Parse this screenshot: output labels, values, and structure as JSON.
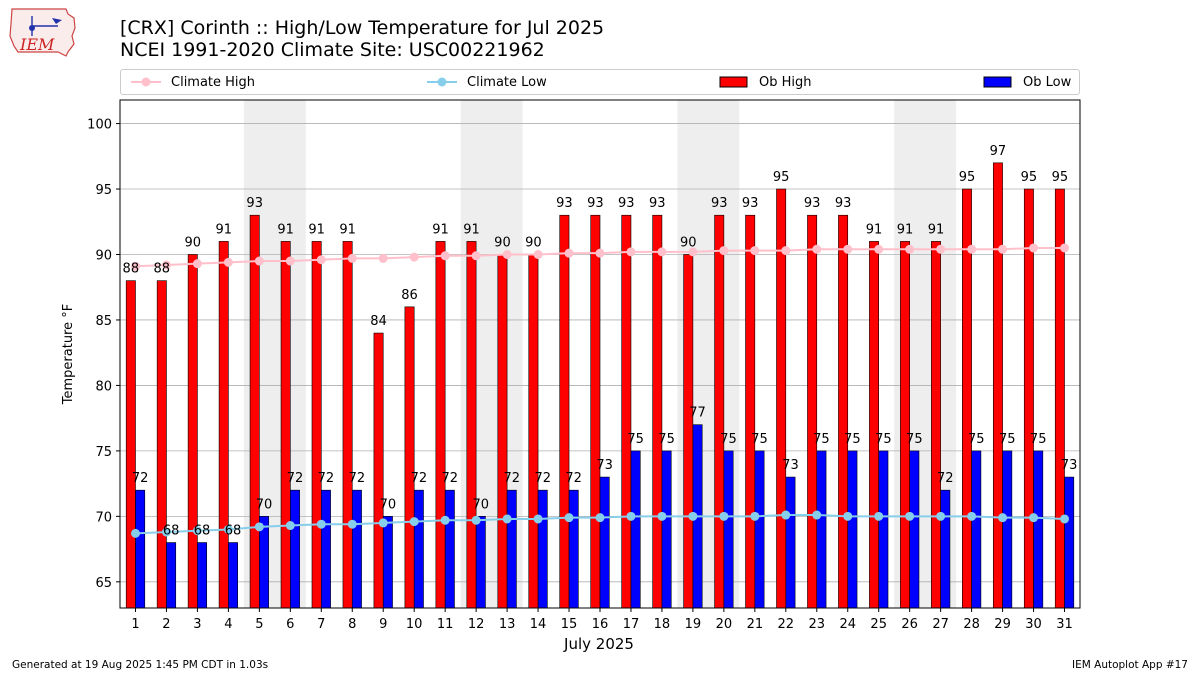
{
  "header": {
    "logo_text": "IEM",
    "title_line1": "[CRX] Corinth :: High/Low Temperature for Jul 2025",
    "title_line2": "NCEI 1991-2020 Climate Site: USC00221962"
  },
  "footer": {
    "generated": "Generated at 19 Aug 2025 1:45 PM CDT in 1.03s",
    "app": "IEM Autoplot App #17"
  },
  "colors": {
    "climate_high": "#ffc0cb",
    "climate_low": "#87ceeb",
    "ob_high": "#ff0000",
    "ob_low": "#0000ff",
    "weekend_shade": "#eeeeee",
    "grid": "#b0b0b0"
  },
  "chart_data": {
    "type": "bar",
    "xlabel": "July 2025",
    "ylabel": "Temperature °F",
    "ylim": [
      63,
      101.8
    ],
    "yticks": [
      65,
      70,
      75,
      80,
      85,
      90,
      95,
      100
    ],
    "grid": "horizontal",
    "legend_position": "top",
    "categories": [
      "1",
      "2",
      "3",
      "4",
      "5",
      "6",
      "7",
      "8",
      "9",
      "10",
      "11",
      "12",
      "13",
      "14",
      "15",
      "16",
      "17",
      "18",
      "19",
      "20",
      "21",
      "22",
      "23",
      "24",
      "25",
      "26",
      "27",
      "28",
      "29",
      "30",
      "31"
    ],
    "shaded_weekends": [
      [
        5,
        6
      ],
      [
        12,
        13
      ],
      [
        19,
        20
      ],
      [
        26,
        27
      ]
    ],
    "series": [
      {
        "name": "Climate High",
        "kind": "line",
        "values": [
          89.1,
          89.2,
          89.3,
          89.4,
          89.5,
          89.5,
          89.6,
          89.7,
          89.7,
          89.8,
          89.9,
          89.9,
          90.0,
          90.0,
          90.1,
          90.1,
          90.2,
          90.2,
          90.2,
          90.3,
          90.3,
          90.3,
          90.4,
          90.4,
          90.4,
          90.4,
          90.4,
          90.4,
          90.4,
          90.5,
          90.5
        ]
      },
      {
        "name": "Climate Low",
        "kind": "line",
        "values": [
          68.7,
          68.8,
          68.9,
          69.0,
          69.2,
          69.3,
          69.4,
          69.4,
          69.5,
          69.6,
          69.7,
          69.7,
          69.8,
          69.8,
          69.9,
          69.9,
          70.0,
          70.0,
          70.0,
          70.0,
          70.0,
          70.1,
          70.1,
          70.0,
          70.0,
          70.0,
          70.0,
          70.0,
          69.9,
          69.9,
          69.8
        ]
      },
      {
        "name": "Ob High",
        "kind": "bar",
        "values": [
          88,
          88,
          90,
          91,
          93,
          91,
          91,
          91,
          84,
          86,
          91,
          91,
          90,
          90,
          93,
          93,
          93,
          93,
          90,
          93,
          93,
          95,
          93,
          93,
          91,
          91,
          91,
          95,
          97,
          95,
          95
        ]
      },
      {
        "name": "Ob Low",
        "kind": "bar",
        "values": [
          72,
          68,
          68,
          68,
          70,
          72,
          72,
          72,
          70,
          72,
          72,
          70,
          72,
          72,
          72,
          73,
          75,
          75,
          77,
          75,
          75,
          73,
          75,
          75,
          75,
          75,
          72,
          75,
          75,
          75,
          73
        ]
      }
    ],
    "bar_labels_high": [
      "88",
      "88",
      "90",
      "91",
      "93",
      "91",
      "91",
      "91",
      "84",
      "86",
      "91",
      "91",
      "90",
      "90",
      "93",
      "93",
      "93",
      "93",
      "90",
      "93",
      "93",
      "95",
      "93",
      "93",
      "91",
      "91",
      "91",
      "95",
      "97",
      "95",
      "95"
    ],
    "bar_labels_low": [
      "72",
      "68",
      "68",
      "68",
      "70",
      "72",
      "72",
      "72",
      "70",
      "72",
      "72",
      "70",
      "72",
      "72",
      "72",
      "73",
      "75",
      "75",
      "77",
      "75",
      "75",
      "73",
      "75",
      "75",
      "75",
      "75",
      "72",
      "75",
      "75",
      "75",
      "73"
    ]
  }
}
